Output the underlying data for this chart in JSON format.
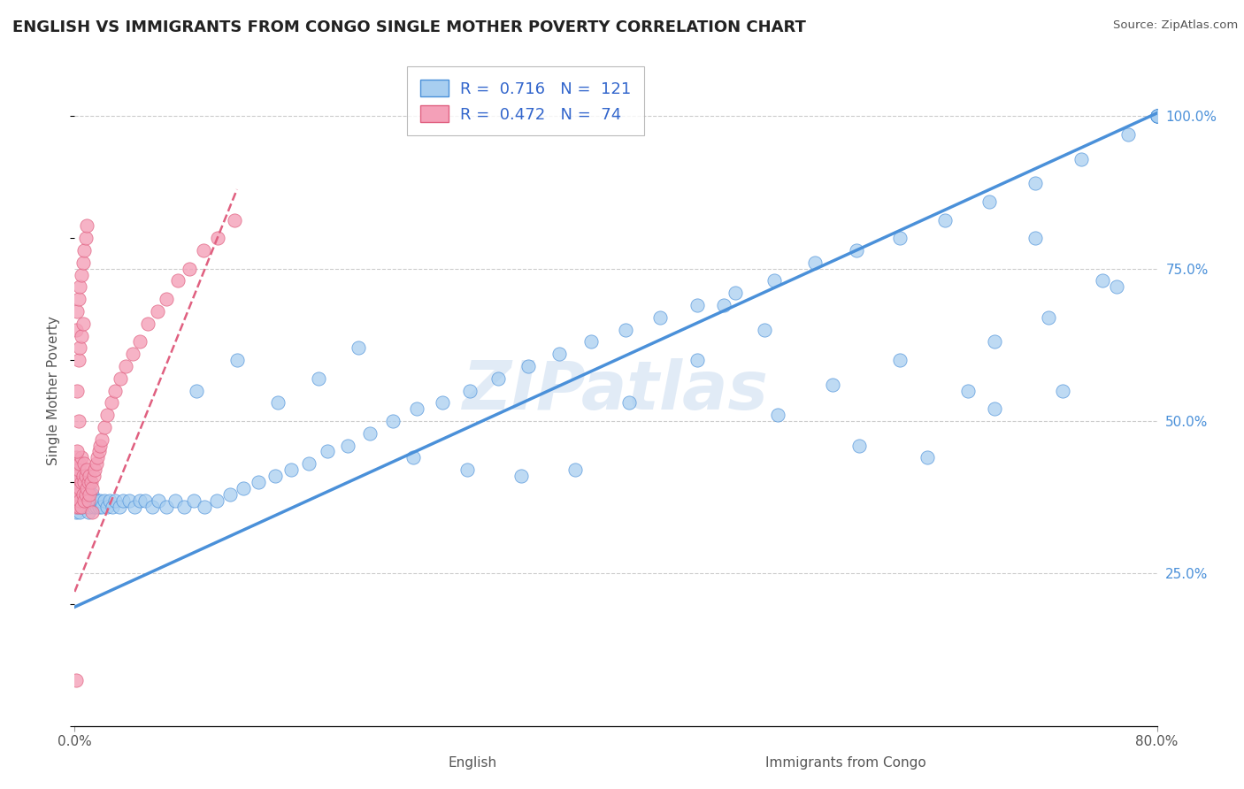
{
  "title": "ENGLISH VS IMMIGRANTS FROM CONGO SINGLE MOTHER POVERTY CORRELATION CHART",
  "source": "Source: ZipAtlas.com",
  "ylabel": "Single Mother Poverty",
  "x_min": 0.0,
  "x_max": 0.8,
  "y_min": 0.0,
  "y_max": 1.1,
  "R_english": 0.716,
  "N_english": 121,
  "R_congo": 0.472,
  "N_congo": 74,
  "color_english": "#a8cef0",
  "color_congo": "#f4a0b8",
  "color_english_line": "#4a90d9",
  "color_congo_line": "#e06080",
  "watermark": "ZIPatlas",
  "english_line_x0": 0.0,
  "english_line_y0": 0.195,
  "english_line_x1": 0.8,
  "english_line_y1": 1.005,
  "congo_line_x0": 0.0,
  "congo_line_y0": 0.22,
  "congo_line_x1": 0.12,
  "congo_line_y1": 0.88,
  "eng_x": [
    0.001,
    0.001,
    0.001,
    0.002,
    0.002,
    0.002,
    0.003,
    0.003,
    0.003,
    0.004,
    0.004,
    0.004,
    0.005,
    0.005,
    0.005,
    0.006,
    0.006,
    0.007,
    0.007,
    0.008,
    0.008,
    0.009,
    0.009,
    0.01,
    0.01,
    0.01,
    0.011,
    0.012,
    0.013,
    0.014,
    0.015,
    0.016,
    0.017,
    0.018,
    0.019,
    0.02,
    0.022,
    0.024,
    0.026,
    0.028,
    0.03,
    0.033,
    0.036,
    0.04,
    0.044,
    0.048,
    0.052,
    0.057,
    0.062,
    0.068,
    0.074,
    0.081,
    0.088,
    0.096,
    0.105,
    0.115,
    0.125,
    0.136,
    0.148,
    0.16,
    0.173,
    0.187,
    0.202,
    0.218,
    0.235,
    0.253,
    0.272,
    0.292,
    0.313,
    0.335,
    0.358,
    0.382,
    0.407,
    0.433,
    0.46,
    0.488,
    0.517,
    0.547,
    0.578,
    0.61,
    0.643,
    0.676,
    0.71,
    0.744,
    0.779,
    0.09,
    0.12,
    0.15,
    0.18,
    0.21,
    0.25,
    0.29,
    0.33,
    0.37,
    0.41,
    0.46,
    0.51,
    0.56,
    0.61,
    0.66,
    0.71,
    0.76,
    0.48,
    0.52,
    0.58,
    0.63,
    0.68,
    0.73,
    0.68,
    0.72,
    0.77,
    0.8,
    0.8,
    0.8,
    0.8,
    0.8,
    0.8
  ],
  "eng_y": [
    0.38,
    0.41,
    0.35,
    0.37,
    0.4,
    0.36,
    0.39,
    0.36,
    0.42,
    0.37,
    0.4,
    0.35,
    0.38,
    0.36,
    0.41,
    0.37,
    0.39,
    0.36,
    0.38,
    0.37,
    0.4,
    0.36,
    0.38,
    0.35,
    0.37,
    0.39,
    0.36,
    0.37,
    0.38,
    0.36,
    0.37,
    0.36,
    0.37,
    0.36,
    0.37,
    0.36,
    0.37,
    0.36,
    0.37,
    0.36,
    0.37,
    0.36,
    0.37,
    0.37,
    0.36,
    0.37,
    0.37,
    0.36,
    0.37,
    0.36,
    0.37,
    0.36,
    0.37,
    0.36,
    0.37,
    0.38,
    0.39,
    0.4,
    0.41,
    0.42,
    0.43,
    0.45,
    0.46,
    0.48,
    0.5,
    0.52,
    0.53,
    0.55,
    0.57,
    0.59,
    0.61,
    0.63,
    0.65,
    0.67,
    0.69,
    0.71,
    0.73,
    0.76,
    0.78,
    0.8,
    0.83,
    0.86,
    0.89,
    0.93,
    0.97,
    0.55,
    0.6,
    0.53,
    0.57,
    0.62,
    0.44,
    0.42,
    0.41,
    0.42,
    0.53,
    0.6,
    0.65,
    0.56,
    0.6,
    0.55,
    0.8,
    0.73,
    0.69,
    0.51,
    0.46,
    0.44,
    0.52,
    0.55,
    0.63,
    0.67,
    0.72,
    1.0,
    1.0,
    1.0,
    1.0,
    1.0,
    1.0
  ],
  "con_x": [
    0.001,
    0.001,
    0.001,
    0.001,
    0.001,
    0.002,
    0.002,
    0.002,
    0.002,
    0.003,
    0.003,
    0.003,
    0.004,
    0.004,
    0.004,
    0.005,
    0.005,
    0.005,
    0.006,
    0.006,
    0.007,
    0.007,
    0.007,
    0.008,
    0.008,
    0.009,
    0.009,
    0.01,
    0.01,
    0.011,
    0.011,
    0.012,
    0.013,
    0.014,
    0.015,
    0.016,
    0.017,
    0.018,
    0.019,
    0.02,
    0.022,
    0.024,
    0.027,
    0.03,
    0.034,
    0.038,
    0.043,
    0.048,
    0.054,
    0.061,
    0.068,
    0.076,
    0.085,
    0.095,
    0.106,
    0.118,
    0.013,
    0.001,
    0.002,
    0.003,
    0.004,
    0.005,
    0.006,
    0.007,
    0.008,
    0.009,
    0.003,
    0.004,
    0.005,
    0.006,
    0.003,
    0.002,
    0.002,
    0.001
  ],
  "con_y": [
    0.4,
    0.44,
    0.38,
    0.36,
    0.42,
    0.39,
    0.43,
    0.37,
    0.41,
    0.38,
    0.42,
    0.36,
    0.39,
    0.43,
    0.37,
    0.4,
    0.36,
    0.44,
    0.38,
    0.41,
    0.37,
    0.4,
    0.43,
    0.38,
    0.41,
    0.39,
    0.42,
    0.37,
    0.4,
    0.38,
    0.41,
    0.4,
    0.39,
    0.41,
    0.42,
    0.43,
    0.44,
    0.45,
    0.46,
    0.47,
    0.49,
    0.51,
    0.53,
    0.55,
    0.57,
    0.59,
    0.61,
    0.63,
    0.66,
    0.68,
    0.7,
    0.73,
    0.75,
    0.78,
    0.8,
    0.83,
    0.35,
    0.65,
    0.68,
    0.7,
    0.72,
    0.74,
    0.76,
    0.78,
    0.8,
    0.82,
    0.6,
    0.62,
    0.64,
    0.66,
    0.5,
    0.55,
    0.45,
    0.075
  ]
}
